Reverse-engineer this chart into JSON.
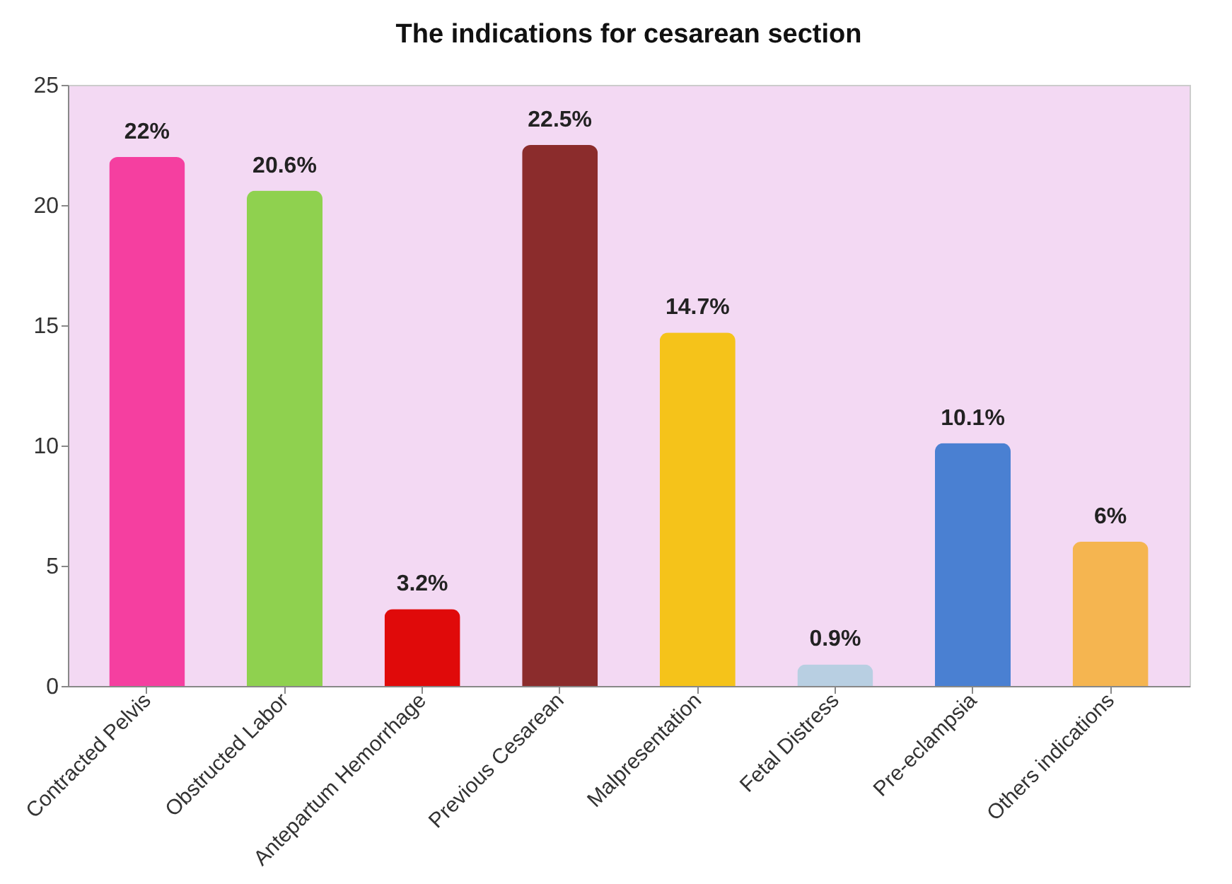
{
  "chart_data": {
    "type": "bar",
    "title": "The indications for cesarean section",
    "categories": [
      "Contracted Pelvis",
      "Obstructed Labor",
      "Antepartum Hemorrhage",
      "Previous Cesarean",
      "Malpresentation",
      "Fetal Distress",
      "Pre-eclampsia",
      "Others indications"
    ],
    "values": [
      22,
      20.6,
      3.2,
      22.5,
      14.7,
      0.9,
      10.1,
      6
    ],
    "colors": [
      "#f53fa0",
      "#8fd14f",
      "#e00a0a",
      "#8b2c2c",
      "#f5c31a",
      "#b8cfe2",
      "#4a80d2",
      "#f5b550"
    ],
    "value_labels": [
      "22%",
      "20.6%",
      "3.2%",
      "22.5%",
      "14.7%",
      "0.9%",
      "10.1%",
      "6%"
    ],
    "ylim": [
      0,
      25
    ],
    "yticks": [
      0,
      5,
      10,
      15,
      20,
      25
    ],
    "grid": false
  }
}
